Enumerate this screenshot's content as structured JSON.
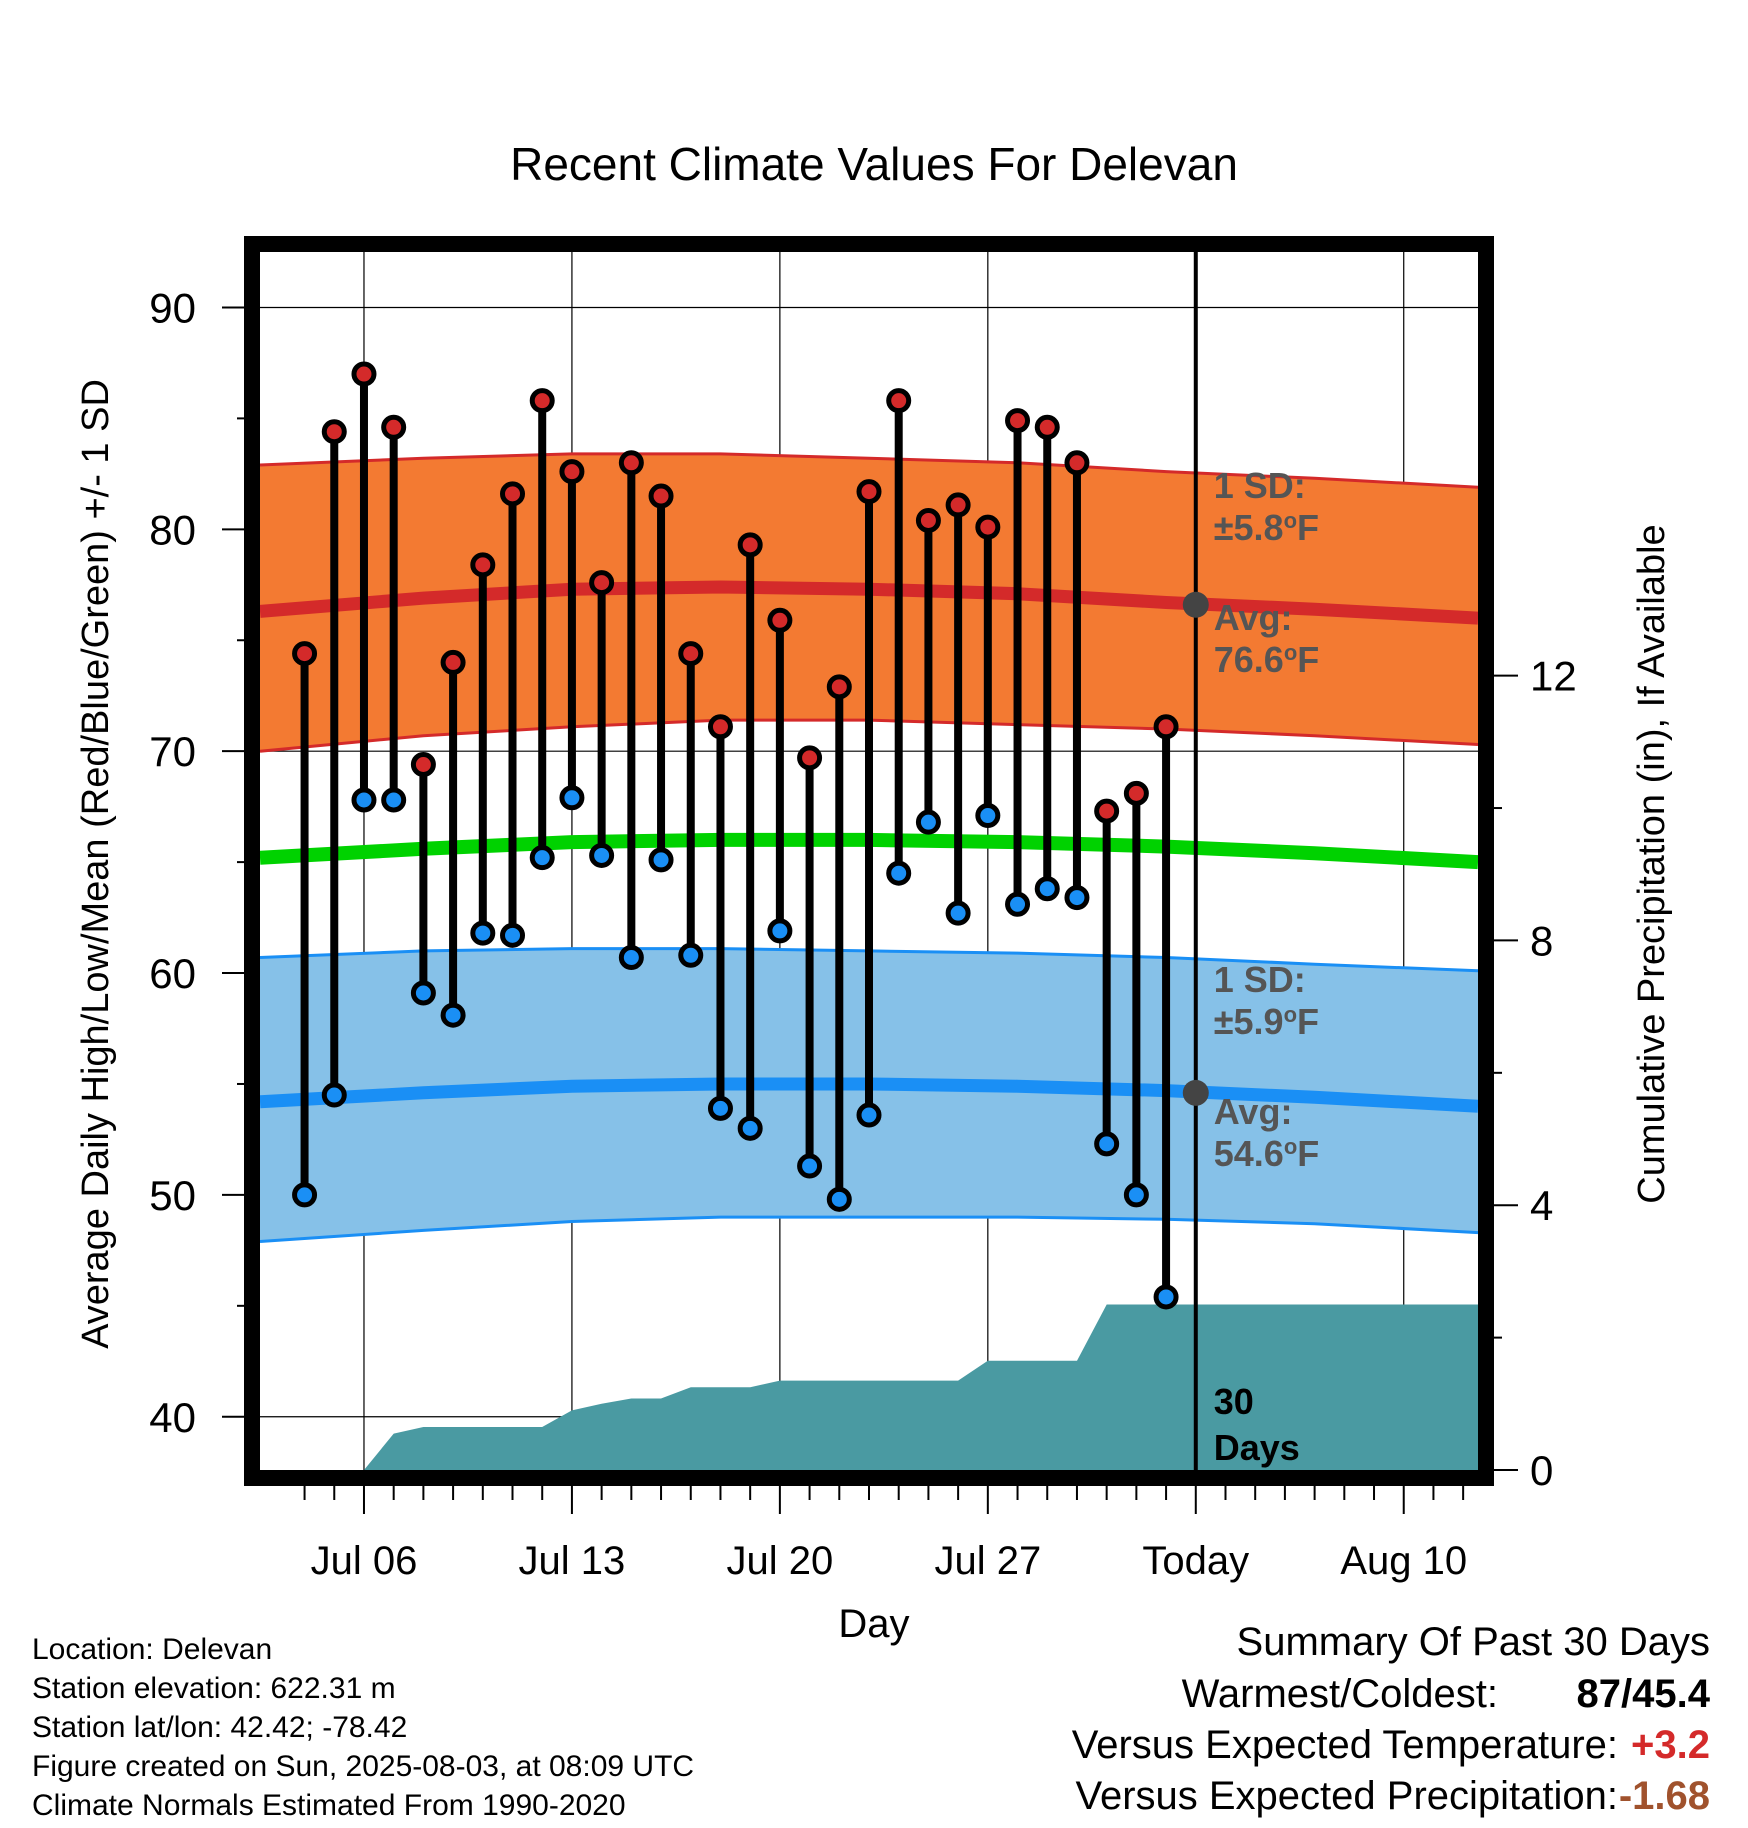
{
  "chart_data": {
    "type": "line",
    "title": "Recent Climate Values For Delevan",
    "xlabel": "Day",
    "ylabel": "Average Daily High/Low/Mean (Red/Blue/Green) +/- 1 SD",
    "y2label": "Cumulative Precipitation (in), If Available",
    "ylim": [
      37.6,
      92.5
    ],
    "y_ticks": [
      40,
      50,
      60,
      70,
      80,
      90
    ],
    "y2lim": [
      0,
      18.4
    ],
    "y2_ticks": [
      0,
      4,
      8,
      12
    ],
    "xlim": [
      -0.5,
      40.5
    ],
    "x_ticks": [
      {
        "day": 3,
        "label": "Jul 06"
      },
      {
        "day": 10,
        "label": "Jul 13"
      },
      {
        "day": 17,
        "label": "Jul 20"
      },
      {
        "day": 24,
        "label": "Jul 27"
      },
      {
        "day": 31,
        "label": "Today"
      },
      {
        "day": 38,
        "label": "Aug 10"
      }
    ],
    "grid": true,
    "today_day": 31,
    "today_line_label": "30 Days",
    "normals_x": [
      -0.5,
      5,
      10,
      15,
      20,
      25,
      30,
      35,
      40.5
    ],
    "high_sd_upper": [
      82.9,
      83.2,
      83.4,
      83.4,
      83.2,
      83.0,
      82.6,
      82.3,
      81.9
    ],
    "high_avg": [
      76.3,
      76.9,
      77.3,
      77.4,
      77.3,
      77.1,
      76.7,
      76.4,
      76.0
    ],
    "high_sd_lower": [
      70.0,
      70.7,
      71.1,
      71.4,
      71.4,
      71.2,
      71.0,
      70.7,
      70.3
    ],
    "mean_avg": [
      65.2,
      65.6,
      65.9,
      66.0,
      66.0,
      65.9,
      65.7,
      65.4,
      65.0
    ],
    "low_sd_upper": [
      60.7,
      61.0,
      61.1,
      61.1,
      61.0,
      60.9,
      60.7,
      60.4,
      60.1
    ],
    "low_avg": [
      54.2,
      54.6,
      54.9,
      55.0,
      55.0,
      54.9,
      54.7,
      54.4,
      54.0
    ],
    "low_sd_lower": [
      47.9,
      48.4,
      48.8,
      49.0,
      49.0,
      49.0,
      48.9,
      48.7,
      48.3
    ],
    "daily_days": [
      1,
      2,
      3,
      4,
      5,
      6,
      7,
      8,
      9,
      10,
      11,
      12,
      13,
      14,
      15,
      16,
      17,
      18,
      19,
      20,
      21,
      22,
      23,
      24,
      25,
      26,
      27,
      28,
      29,
      30
    ],
    "daily_high": [
      74.4,
      84.4,
      87.0,
      84.6,
      69.4,
      74.0,
      78.4,
      81.6,
      85.8,
      82.6,
      77.6,
      83.0,
      81.5,
      74.4,
      71.1,
      79.3,
      75.9,
      69.7,
      72.9,
      81.7,
      85.8,
      80.4,
      81.1,
      80.1,
      84.9,
      84.6,
      83.0,
      67.3,
      68.1,
      71.1
    ],
    "daily_low": [
      50.0,
      54.5,
      67.8,
      67.8,
      59.1,
      58.1,
      61.8,
      61.7,
      65.2,
      67.9,
      65.3,
      60.7,
      65.1,
      60.8,
      53.9,
      53.0,
      61.9,
      51.3,
      49.8,
      53.6,
      64.5,
      66.8,
      62.7,
      67.1,
      63.1,
      63.8,
      63.4,
      52.3,
      50.0,
      45.4
    ],
    "precip_days": [
      -0.5,
      3,
      4,
      5,
      6,
      7,
      8,
      9,
      10,
      11,
      12,
      13,
      14,
      15,
      16,
      17,
      18,
      19,
      20,
      21,
      22,
      23,
      24,
      25,
      26,
      27,
      28,
      29,
      30,
      31,
      40.5
    ],
    "precip_cum": [
      0,
      0,
      0.55,
      0.65,
      0.65,
      0.65,
      0.65,
      0.65,
      0.9,
      1.0,
      1.08,
      1.08,
      1.25,
      1.25,
      1.25,
      1.35,
      1.35,
      1.35,
      1.35,
      1.35,
      1.35,
      1.35,
      1.65,
      1.65,
      1.65,
      1.65,
      2.5,
      2.5,
      2.5,
      2.5,
      2.5
    ],
    "annotations": {
      "high_sd_title": "1 SD:",
      "high_sd_value": "±5.8",
      "high_avg_title": "Avg:",
      "high_avg_value": "76.6",
      "low_sd_title": "1 SD:",
      "low_sd_value": "±5.9",
      "low_avg_title": "Avg:",
      "low_avg_value": "54.6",
      "degree_symbol": "o",
      "unit": "F",
      "days_line1": "30",
      "days_line2": "Days"
    },
    "colors": {
      "high_band": "#f37a32",
      "high_line": "#d42a2a",
      "low_band": "#86c1e8",
      "low_line": "#1a8ff5",
      "mean_line": "#00d200",
      "precip": "#4a9aa2",
      "high_marker": "#d42a2a",
      "low_marker": "#1a8ff5",
      "annotation_text": "#555555",
      "avg_marker": "#444444"
    }
  },
  "info": {
    "location": "Location: Delevan",
    "elevation": "Station elevation: 622.31 m",
    "latlon": "Station lat/lon: 42.42; -78.42",
    "created": "Figure created on Sun, 2025-08-03, at 08:09 UTC",
    "normals": "Climate Normals Estimated From 1990-2020"
  },
  "summary": {
    "title": "Summary Of Past 30 Days",
    "rows": [
      {
        "label": "Warmest/Coldest:",
        "warm": "87",
        "sep": "/",
        "cold": "45.4"
      },
      {
        "label": "Versus Expected Temperature:",
        "value": "+3.2",
        "color": "#d42a2a"
      },
      {
        "label": "Versus Expected Precipitation:",
        "value": "-1.68",
        "color": "#a0522d"
      }
    ]
  }
}
